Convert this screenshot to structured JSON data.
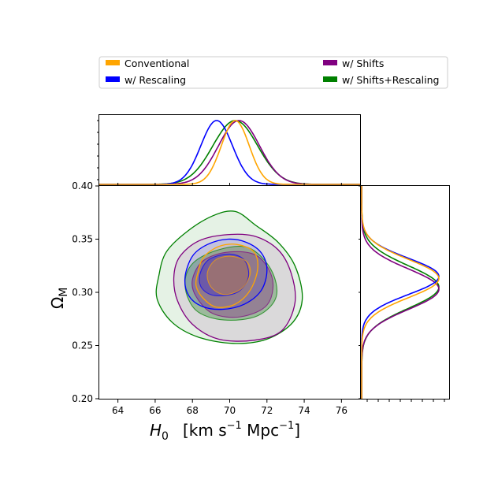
{
  "chart_data": {
    "type": "corner-plot",
    "xlabel_main": "H",
    "xlabel_sub": "0",
    "xlabel_units_prefix": "[km s",
    "xlabel_units_exp1": "−1",
    "xlabel_units_mid": " Mpc",
    "xlabel_units_exp2": "−1",
    "xlabel_units_suffix": "]",
    "ylabel_main": "Ω",
    "ylabel_sub": "M",
    "xlim": [
      63.0,
      77.0
    ],
    "ylim": [
      0.2,
      0.4
    ],
    "xticks": [
      "64",
      "66",
      "68",
      "70",
      "72",
      "74",
      "76"
    ],
    "xtick_values": [
      64,
      66,
      68,
      70,
      72,
      74,
      76
    ],
    "yticks": [
      "0.20",
      "0.25",
      "0.30",
      "0.35",
      "0.40"
    ],
    "ytick_values": [
      0.2,
      0.25,
      0.3,
      0.35,
      0.4
    ],
    "legend": {
      "placement": "top",
      "entries": [
        {
          "label": "Conventional",
          "color": "#ffa500"
        },
        {
          "label": "w/ Shifts",
          "color": "#800080"
        },
        {
          "label": "w/ Rescaling",
          "color": "#0000ff"
        },
        {
          "label": "w/ Shifts+Rescaling",
          "color": "#008000"
        }
      ]
    },
    "series": [
      {
        "name": "Conventional",
        "color": "#ffa500",
        "h0_mean": 70.3,
        "h0_sigma": 0.75,
        "om_mean": 0.313,
        "om_sigma": 0.018,
        "contour_outer": [
          [
            68.3,
            0.319
          ],
          [
            68.6,
            0.333
          ],
          [
            69.4,
            0.343
          ],
          [
            70.4,
            0.345
          ],
          [
            71.3,
            0.338
          ],
          [
            71.5,
            0.322
          ],
          [
            71.1,
            0.302
          ],
          [
            70.3,
            0.289
          ],
          [
            69.3,
            0.286
          ],
          [
            68.6,
            0.294
          ],
          [
            68.2,
            0.306
          ]
        ],
        "contour_inner": [
          [
            68.8,
            0.318
          ],
          [
            69.2,
            0.33
          ],
          [
            70.0,
            0.334
          ],
          [
            70.9,
            0.329
          ],
          [
            71.1,
            0.317
          ],
          [
            70.6,
            0.303
          ],
          [
            69.7,
            0.298
          ],
          [
            69.0,
            0.305
          ]
        ]
      },
      {
        "name": "w/ Rescaling",
        "color": "#0000ff",
        "h0_mean": 69.3,
        "h0_sigma": 0.85,
        "om_mean": 0.315,
        "om_sigma": 0.017,
        "contour_outer": [
          [
            67.6,
            0.314
          ],
          [
            68.0,
            0.334
          ],
          [
            68.8,
            0.345
          ],
          [
            69.9,
            0.35
          ],
          [
            70.9,
            0.347
          ],
          [
            71.7,
            0.337
          ],
          [
            72.0,
            0.321
          ],
          [
            71.7,
            0.302
          ],
          [
            70.8,
            0.289
          ],
          [
            69.6,
            0.284
          ],
          [
            68.5,
            0.287
          ],
          [
            67.8,
            0.297
          ]
        ],
        "contour_inner": [
          [
            68.4,
            0.317
          ],
          [
            68.9,
            0.331
          ],
          [
            70.0,
            0.336
          ],
          [
            70.8,
            0.33
          ],
          [
            71.0,
            0.314
          ],
          [
            70.4,
            0.3
          ],
          [
            69.2,
            0.297
          ],
          [
            68.5,
            0.304
          ]
        ]
      },
      {
        "name": "w/ Shifts",
        "color": "#800080",
        "h0_mean": 70.5,
        "h0_sigma": 1.1,
        "om_mean": 0.303,
        "om_sigma": 0.019,
        "contour_outer": [
          [
            67.0,
            0.314
          ],
          [
            67.3,
            0.333
          ],
          [
            68.3,
            0.348
          ],
          [
            69.7,
            0.354
          ],
          [
            71.3,
            0.353
          ],
          [
            72.6,
            0.34
          ],
          [
            73.3,
            0.318
          ],
          [
            73.5,
            0.29
          ],
          [
            72.8,
            0.264
          ],
          [
            71.3,
            0.255
          ],
          [
            69.4,
            0.256
          ],
          [
            68.0,
            0.27
          ],
          [
            67.2,
            0.292
          ]
        ],
        "contour_inner": [
          [
            68.0,
            0.312
          ],
          [
            68.6,
            0.33
          ],
          [
            70.0,
            0.338
          ],
          [
            71.5,
            0.334
          ],
          [
            72.3,
            0.312
          ],
          [
            72.0,
            0.288
          ],
          [
            70.6,
            0.277
          ],
          [
            69.1,
            0.28
          ],
          [
            68.2,
            0.296
          ]
        ]
      },
      {
        "name": "w/ Shifts+Rescaling",
        "color": "#008000",
        "h0_mean": 70.3,
        "h0_sigma": 1.2,
        "om_mean": 0.305,
        "om_sigma": 0.02,
        "contour_outer": [
          [
            66.2,
            0.316
          ],
          [
            66.6,
            0.338
          ],
          [
            67.7,
            0.357
          ],
          [
            69.1,
            0.372
          ],
          [
            70.3,
            0.376
          ],
          [
            71.4,
            0.363
          ],
          [
            72.6,
            0.347
          ],
          [
            73.5,
            0.325
          ],
          [
            73.9,
            0.295
          ],
          [
            73.4,
            0.272
          ],
          [
            72.0,
            0.256
          ],
          [
            70.2,
            0.252
          ],
          [
            68.3,
            0.258
          ],
          [
            66.9,
            0.272
          ],
          [
            66.1,
            0.294
          ]
        ],
        "contour_inner": [
          [
            67.6,
            0.306
          ],
          [
            68.0,
            0.327
          ],
          [
            69.4,
            0.34
          ],
          [
            71.0,
            0.342
          ],
          [
            72.2,
            0.322
          ],
          [
            72.5,
            0.296
          ],
          [
            71.5,
            0.278
          ],
          [
            69.7,
            0.274
          ],
          [
            68.2,
            0.283
          ]
        ]
      }
    ]
  }
}
